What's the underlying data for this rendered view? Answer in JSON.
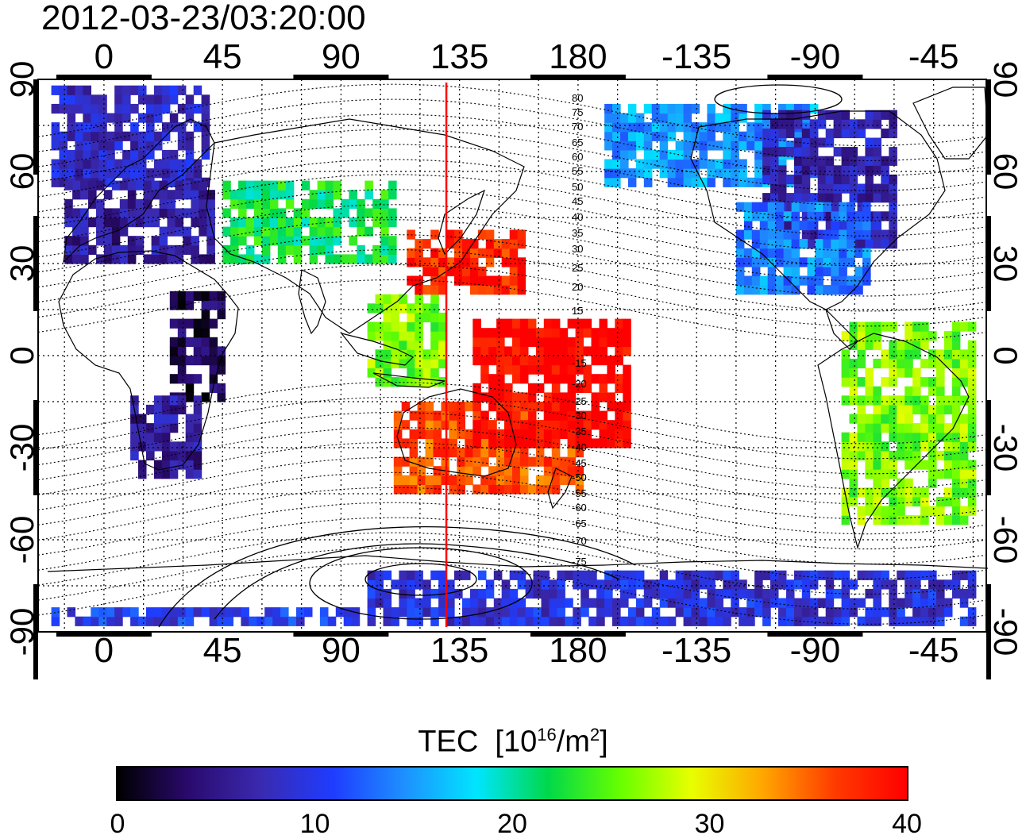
{
  "timestamp": "2012-03-23/03:20:00",
  "lon_ticks": [
    "0",
    "45",
    "90",
    "135",
    "180",
    "-135",
    "-90",
    "-45"
  ],
  "lat_ticks": [
    "90",
    "60",
    "30",
    "0",
    "-30",
    "-60",
    "-90"
  ],
  "colorbar": {
    "title": "TEC",
    "unit_base": "[10",
    "unit_exp1": "16",
    "unit_mid": "/m",
    "unit_exp2": "2",
    "unit_end": "]",
    "ticks": [
      "0",
      "10",
      "20",
      "30",
      "40"
    ],
    "range": [
      0,
      40
    ],
    "stops": [
      "#000000",
      "#2a0a6e",
      "#3a2ab0",
      "#1f3cff",
      "#1e90ff",
      "#00e5ff",
      "#00d84a",
      "#66ff00",
      "#e8ff00",
      "#ffa500",
      "#ff3a00",
      "#ff0000"
    ]
  },
  "contour_labels": {
    "north": [
      "80",
      "75",
      "70",
      "65",
      "60",
      "55",
      "50",
      "45",
      "40",
      "35",
      "30",
      "25",
      "20",
      "15"
    ],
    "south": [
      "-15",
      "-20",
      "-25",
      "-30",
      "-35",
      "-40",
      "-45",
      "-50",
      "-55",
      "-60",
      "-65",
      "-70",
      "-75"
    ]
  },
  "map": {
    "projection": "cylindrical equidistant",
    "lon_range": [
      -25,
      335
    ],
    "lat_range": [
      -90,
      90
    ],
    "marker_longitude": 130,
    "marker_color": "#ff0000",
    "grid": true
  },
  "chart_data": {
    "type": "heatmap",
    "title": "2012-03-23/03:20:00",
    "quantity": "TEC",
    "unit": "[10^16/m^2]",
    "range": [
      0,
      40
    ],
    "regions": [
      {
        "lon": [
          -20,
          40
        ],
        "lat": [
          55,
          88
        ],
        "tec": 8
      },
      {
        "lon": [
          -15,
          40
        ],
        "lat": [
          30,
          55
        ],
        "tec": 6
      },
      {
        "lon": [
          25,
          45
        ],
        "lat": [
          -15,
          20
        ],
        "tec": 3
      },
      {
        "lon": [
          10,
          35
        ],
        "lat": [
          -40,
          -15
        ],
        "tec": 6
      },
      {
        "lon": [
          45,
          110
        ],
        "lat": [
          30,
          55
        ],
        "tec": 22
      },
      {
        "lon": [
          100,
          130
        ],
        "lat": [
          -10,
          20
        ],
        "tec": 26
      },
      {
        "lon": [
          115,
          160
        ],
        "lat": [
          20,
          40
        ],
        "tec": 38
      },
      {
        "lon": [
          110,
          180
        ],
        "lat": [
          -45,
          -15
        ],
        "tec": 36
      },
      {
        "lon": [
          140,
          200
        ],
        "lat": [
          -30,
          10
        ],
        "tec": 40
      },
      {
        "lon": [
          190,
          270
        ],
        "lat": [
          55,
          80
        ],
        "tec": 15
      },
      {
        "lon": [
          250,
          300
        ],
        "lat": [
          35,
          80
        ],
        "tec": 7
      },
      {
        "lon": [
          240,
          290
        ],
        "lat": [
          20,
          50
        ],
        "tec": 14
      },
      {
        "lon": [
          280,
          330
        ],
        "lat": [
          -55,
          10
        ],
        "tec": 26
      },
      {
        "lon": [
          100,
          330
        ],
        "lat": [
          -88,
          -70
        ],
        "tec": 9
      },
      {
        "lon": [
          -20,
          100
        ],
        "lat": [
          -88,
          -82
        ],
        "tec": 10
      }
    ]
  }
}
